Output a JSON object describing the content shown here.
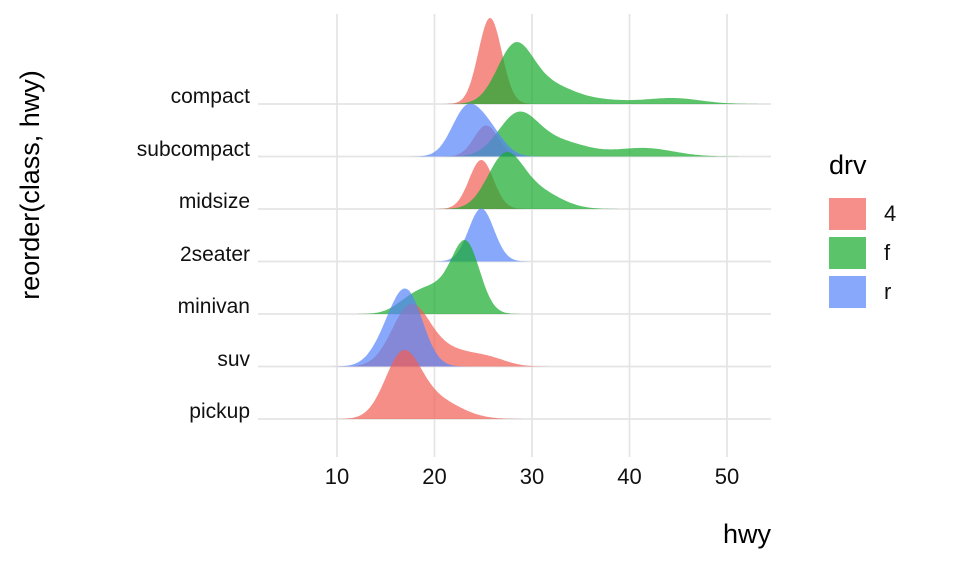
{
  "y_axis": {
    "title": "reorder(class, hwy)",
    "categories": [
      "compact",
      "subcompact",
      "midsize",
      "2seater",
      "minivan",
      "suv",
      "pickup"
    ]
  },
  "x_axis": {
    "title": "hwy",
    "ticks": [
      "10",
      "20",
      "30",
      "40",
      "50"
    ]
  },
  "legend": {
    "title": "drv",
    "items": [
      {
        "label": "4",
        "swatch_color": "#F68E89"
      },
      {
        "label": "f",
        "swatch_color": "#5BC46B"
      },
      {
        "label": "r",
        "swatch_color": "#88A9FB"
      }
    ]
  },
  "style": {
    "background": "#FFFFFF",
    "gridline_color": "#E4E4E4",
    "text_color": "#111111"
  },
  "chart_data": {
    "type": "area",
    "subtype": "ridgeline-density",
    "title": "",
    "xlabel": "hwy",
    "ylabel": "reorder(class, hwy)",
    "x_ticks": [
      10,
      20,
      30,
      40,
      50
    ],
    "x_domain_shown": [
      2.2,
      54.4
    ],
    "grid": "major-only",
    "legend_position": "right",
    "legend_title": "drv",
    "legend_entries": [
      "4",
      "f",
      "r"
    ],
    "fill_colors": {
      "4": "#F25E56",
      "f": "#15AB2C",
      "r": "#5584F9"
    },
    "fill_opacity": 0.7,
    "rows": [
      {
        "class": "compact",
        "curves": [
          {
            "drv": "4",
            "components": [
              [
                25.7,
                1.2,
                1.0
              ]
            ],
            "peak_height": 86
          },
          {
            "drv": "f",
            "components": [
              [
                28.2,
                1.8,
                1.0
              ],
              [
                31.5,
                2.6,
                0.35
              ],
              [
                37.0,
                3.0,
                0.07
              ],
              [
                44.5,
                2.8,
                0.11
              ]
            ],
            "peak_height": 62
          }
        ]
      },
      {
        "class": "subcompact",
        "curves": [
          {
            "drv": "4",
            "components": [
              [
                25.3,
                1.25,
                1.0
              ]
            ],
            "peak_height": 31
          },
          {
            "drv": "f",
            "components": [
              [
                28.5,
                2.0,
                1.0
              ],
              [
                32.5,
                3.0,
                0.4
              ],
              [
                41.5,
                3.0,
                0.22
              ]
            ],
            "peak_height": 45
          },
          {
            "drv": "r",
            "components": [
              [
                23.2,
                1.5,
                1.0
              ],
              [
                25.6,
                1.5,
                0.55
              ]
            ],
            "peak_height": 53
          }
        ]
      },
      {
        "class": "midsize",
        "curves": [
          {
            "drv": "4",
            "components": [
              [
                24.8,
                1.25,
                1.0
              ]
            ],
            "peak_height": 49
          },
          {
            "drv": "f",
            "components": [
              [
                27.2,
                1.8,
                1.0
              ],
              [
                30.5,
                2.4,
                0.35
              ]
            ],
            "peak_height": 57
          }
        ]
      },
      {
        "class": "2seater",
        "curves": [
          {
            "drv": "r",
            "components": [
              [
                24.8,
                1.3,
                1.0
              ]
            ],
            "peak_height": 53
          }
        ]
      },
      {
        "class": "minivan",
        "curves": [
          {
            "drv": "f",
            "components": [
              [
                23.3,
                1.4,
                1.0
              ],
              [
                20.5,
                2.2,
                0.42
              ],
              [
                17.5,
                1.6,
                0.15
              ]
            ],
            "peak_height": 74
          }
        ]
      },
      {
        "class": "suv",
        "curves": [
          {
            "drv": "4",
            "components": [
              [
                17.5,
                1.9,
                1.0
              ],
              [
                21.5,
                2.7,
                0.28
              ],
              [
                25.8,
                1.8,
                0.1
              ]
            ],
            "peak_height": 63
          },
          {
            "drv": "r",
            "components": [
              [
                17.3,
                1.6,
                1.0
              ],
              [
                15.2,
                1.6,
                0.35
              ]
            ],
            "peak_height": 78
          }
        ]
      },
      {
        "class": "pickup",
        "curves": [
          {
            "drv": "4",
            "components": [
              [
                16.7,
                1.8,
                1.0
              ],
              [
                20.0,
                2.6,
                0.32
              ]
            ],
            "peak_height": 69
          }
        ]
      }
    ]
  }
}
